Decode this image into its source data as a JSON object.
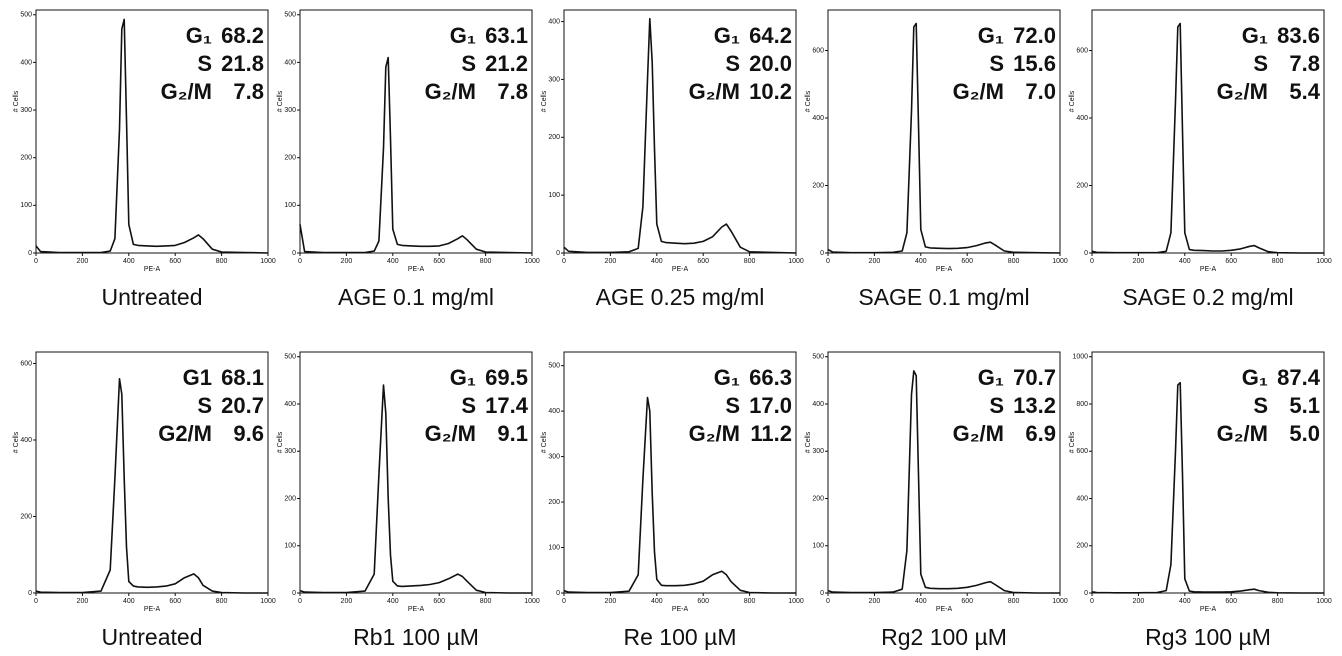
{
  "chart_data": [
    {
      "type": "line",
      "title": "Untreated",
      "x_label": "PE-A",
      "y_label": "# Cells",
      "color": "#111111",
      "x": [
        0,
        20,
        100,
        200,
        280,
        320,
        340,
        360,
        370,
        380,
        390,
        400,
        420,
        440,
        480,
        520,
        560,
        600,
        640,
        680,
        700,
        720,
        760,
        800,
        900,
        1000
      ],
      "values": [
        15,
        3,
        1,
        1,
        1,
        4,
        30,
        260,
        470,
        490,
        280,
        60,
        18,
        16,
        15,
        14,
        15,
        16,
        22,
        32,
        38,
        30,
        8,
        2,
        1,
        0
      ],
      "xlim": [
        0,
        1000
      ],
      "xticks": [
        0,
        200,
        400,
        600,
        800,
        1000
      ],
      "ylim": [
        0,
        510
      ],
      "yticks": [
        0,
        100,
        200,
        300,
        400,
        500
      ],
      "stats": {
        "labels": [
          "G₁",
          "S",
          "G₂/M"
        ],
        "values": [
          68.2,
          21.8,
          7.8
        ]
      }
    },
    {
      "type": "line",
      "title": "AGE 0.1 mg/ml",
      "x_label": "PE-A",
      "y_label": "# Cells",
      "color": "#111111",
      "x": [
        0,
        20,
        100,
        200,
        280,
        320,
        340,
        360,
        370,
        380,
        390,
        400,
        420,
        440,
        480,
        520,
        560,
        600,
        640,
        680,
        700,
        720,
        760,
        800,
        900,
        1000
      ],
      "values": [
        60,
        3,
        1,
        1,
        1,
        4,
        25,
        220,
        390,
        410,
        240,
        50,
        18,
        16,
        15,
        14,
        14,
        15,
        20,
        30,
        36,
        28,
        8,
        2,
        1,
        0
      ],
      "xlim": [
        0,
        1000
      ],
      "xticks": [
        0,
        200,
        400,
        600,
        800,
        1000
      ],
      "ylim": [
        0,
        510
      ],
      "yticks": [
        0,
        100,
        200,
        300,
        400,
        500
      ],
      "stats": {
        "labels": [
          "G₁",
          "S",
          "G₂/M"
        ],
        "values": [
          63.1,
          21.2,
          7.8
        ]
      }
    },
    {
      "type": "line",
      "title": "AGE 0.25 mg/ml",
      "x_label": "PE-A",
      "y_label": "# Cells",
      "color": "#111111",
      "x": [
        0,
        20,
        100,
        200,
        280,
        320,
        340,
        360,
        370,
        380,
        390,
        400,
        420,
        440,
        480,
        520,
        560,
        600,
        640,
        680,
        700,
        720,
        760,
        800,
        900,
        1000
      ],
      "values": [
        10,
        3,
        1,
        1,
        2,
        8,
        80,
        300,
        405,
        330,
        180,
        50,
        20,
        18,
        17,
        16,
        17,
        20,
        28,
        45,
        50,
        38,
        10,
        2,
        1,
        0
      ],
      "xlim": [
        0,
        1000
      ],
      "xticks": [
        0,
        200,
        400,
        600,
        800,
        1000
      ],
      "ylim": [
        0,
        420
      ],
      "yticks": [
        0,
        100,
        200,
        300,
        400
      ],
      "stats": {
        "labels": [
          "G₁",
          "S",
          "G₂/M"
        ],
        "values": [
          64.2,
          20,
          10.2
        ],
        "value_labels": [
          "64.2",
          "20.0",
          "10.2"
        ]
      }
    },
    {
      "type": "line",
      "title": "SAGE 0.1 mg/ml",
      "x_label": "PE-A",
      "y_label": "# Cells",
      "color": "#111111",
      "x": [
        0,
        20,
        100,
        200,
        280,
        320,
        340,
        360,
        370,
        380,
        390,
        400,
        420,
        440,
        480,
        520,
        560,
        600,
        640,
        680,
        700,
        720,
        760,
        800,
        900,
        1000
      ],
      "values": [
        10,
        3,
        1,
        1,
        2,
        6,
        60,
        420,
        670,
        680,
        380,
        70,
        18,
        15,
        14,
        13,
        14,
        16,
        22,
        30,
        32,
        24,
        6,
        2,
        1,
        0
      ],
      "xlim": [
        0,
        1000
      ],
      "xticks": [
        0,
        200,
        400,
        600,
        800,
        1000
      ],
      "ylim": [
        0,
        720
      ],
      "yticks": [
        0,
        200,
        400,
        600
      ],
      "stats": {
        "labels": [
          "G₁",
          "S",
          "G₂/M"
        ],
        "values": [
          72,
          15.6,
          7
        ],
        "value_labels": [
          "72.0",
          "15.6",
          "7.0"
        ]
      }
    },
    {
      "type": "line",
      "title": "SAGE 0.2 mg/ml",
      "x_label": "PE-A",
      "y_label": "# Cells",
      "color": "#111111",
      "x": [
        0,
        20,
        100,
        200,
        280,
        320,
        340,
        360,
        370,
        380,
        390,
        400,
        420,
        440,
        480,
        520,
        560,
        600,
        640,
        680,
        700,
        720,
        760,
        800,
        900,
        1000
      ],
      "values": [
        5,
        2,
        1,
        1,
        1,
        5,
        60,
        450,
        670,
        680,
        360,
        60,
        10,
        8,
        7,
        6,
        6,
        8,
        12,
        20,
        22,
        15,
        4,
        1,
        0,
        0
      ],
      "xlim": [
        0,
        1000
      ],
      "xticks": [
        0,
        200,
        400,
        600,
        800,
        1000
      ],
      "ylim": [
        0,
        720
      ],
      "yticks": [
        0,
        200,
        400,
        600
      ],
      "stats": {
        "labels": [
          "G₁",
          "S",
          "G₂/M"
        ],
        "values": [
          83.6,
          7.8,
          5.4
        ]
      }
    },
    {
      "type": "line",
      "title": "Untreated",
      "x_label": "PE-A",
      "y_label": "# Cells",
      "color": "#111111",
      "x": [
        0,
        20,
        100,
        200,
        280,
        320,
        340,
        360,
        370,
        380,
        390,
        400,
        420,
        440,
        480,
        520,
        560,
        600,
        640,
        680,
        700,
        720,
        760,
        800,
        900,
        1000
      ],
      "values": [
        5,
        2,
        1,
        1,
        5,
        60,
        300,
        560,
        520,
        300,
        120,
        30,
        18,
        16,
        15,
        16,
        18,
        24,
        40,
        50,
        40,
        20,
        5,
        1,
        0,
        0
      ],
      "xlim": [
        0,
        1000
      ],
      "xticks": [
        0,
        200,
        400,
        600,
        800,
        1000
      ],
      "ylim": [
        0,
        630
      ],
      "yticks": [
        0,
        200,
        400,
        600
      ],
      "stats": {
        "labels": [
          "G1",
          "S",
          "G2/M"
        ],
        "values": [
          68.1,
          20.7,
          9.6
        ]
      }
    },
    {
      "type": "line",
      "title": "Rb1 100 µM",
      "x_label": "PE-A",
      "y_label": "# Cells",
      "color": "#111111",
      "x": [
        0,
        20,
        100,
        200,
        280,
        320,
        340,
        360,
        370,
        380,
        390,
        400,
        420,
        440,
        480,
        520,
        560,
        600,
        640,
        680,
        700,
        720,
        760,
        800,
        900,
        1000
      ],
      "values": [
        5,
        2,
        1,
        1,
        4,
        40,
        250,
        440,
        380,
        200,
        80,
        25,
        15,
        14,
        15,
        16,
        18,
        22,
        30,
        40,
        35,
        25,
        6,
        1,
        0,
        0
      ],
      "xlim": [
        0,
        1000
      ],
      "xticks": [
        0,
        200,
        400,
        600,
        800,
        1000
      ],
      "ylim": [
        0,
        510
      ],
      "yticks": [
        0,
        100,
        200,
        300,
        400,
        500
      ],
      "stats": {
        "labels": [
          "G₁",
          "S",
          "G₂/M"
        ],
        "values": [
          69.5,
          17.4,
          9.1
        ]
      }
    },
    {
      "type": "line",
      "title": "Re 100 µM",
      "x_label": "PE-A",
      "y_label": "# Cells",
      "color": "#111111",
      "x": [
        0,
        20,
        100,
        200,
        280,
        320,
        340,
        360,
        370,
        380,
        390,
        400,
        420,
        440,
        480,
        520,
        560,
        600,
        640,
        680,
        700,
        720,
        760,
        800,
        900,
        1000
      ],
      "values": [
        5,
        2,
        1,
        1,
        4,
        40,
        250,
        430,
        400,
        220,
        90,
        30,
        17,
        16,
        16,
        17,
        20,
        26,
        40,
        48,
        40,
        25,
        6,
        1,
        0,
        0
      ],
      "xlim": [
        0,
        1000
      ],
      "xticks": [
        0,
        200,
        400,
        600,
        800,
        1000
      ],
      "ylim": [
        0,
        530
      ],
      "yticks": [
        0,
        100,
        200,
        300,
        400,
        500
      ],
      "stats": {
        "labels": [
          "G₁",
          "S",
          "G₂/M"
        ],
        "values": [
          66.3,
          17,
          11.2
        ],
        "value_labels": [
          "66.3",
          "17.0",
          "11.2"
        ]
      }
    },
    {
      "type": "line",
      "title": "Rg2 100 µM",
      "x_label": "PE-A",
      "y_label": "# Cells",
      "color": "#111111",
      "x": [
        0,
        20,
        100,
        200,
        280,
        320,
        340,
        360,
        370,
        380,
        390,
        400,
        420,
        440,
        480,
        520,
        560,
        600,
        640,
        680,
        700,
        720,
        760,
        800,
        900,
        1000
      ],
      "values": [
        5,
        2,
        1,
        1,
        2,
        8,
        90,
        420,
        470,
        460,
        250,
        40,
        12,
        10,
        9,
        9,
        10,
        12,
        16,
        22,
        24,
        18,
        5,
        1,
        0,
        0
      ],
      "xlim": [
        0,
        1000
      ],
      "xticks": [
        0,
        200,
        400,
        600,
        800,
        1000
      ],
      "ylim": [
        0,
        510
      ],
      "yticks": [
        0,
        100,
        200,
        300,
        400,
        500
      ],
      "stats": {
        "labels": [
          "G₁",
          "S",
          "G₂/M"
        ],
        "values": [
          70.7,
          13.2,
          6.9
        ]
      }
    },
    {
      "type": "line",
      "title": "Rg3 100 µM",
      "x_label": "PE-A",
      "y_label": "# Cells",
      "color": "#111111",
      "x": [
        0,
        20,
        100,
        200,
        280,
        320,
        340,
        360,
        370,
        380,
        390,
        400,
        420,
        440,
        480,
        520,
        560,
        600,
        640,
        680,
        700,
        720,
        760,
        800,
        900,
        1000
      ],
      "values": [
        5,
        2,
        1,
        1,
        2,
        10,
        120,
        600,
        880,
        890,
        500,
        60,
        8,
        5,
        4,
        4,
        4,
        5,
        8,
        14,
        16,
        10,
        3,
        1,
        0,
        0
      ],
      "xlim": [
        0,
        1000
      ],
      "xticks": [
        0,
        200,
        400,
        600,
        800,
        1000
      ],
      "ylim": [
        0,
        1020
      ],
      "yticks": [
        0,
        200,
        400,
        600,
        800,
        1000
      ],
      "stats": {
        "labels": [
          "G₁",
          "S",
          "G₂/M"
        ],
        "values": [
          87.4,
          5.1,
          5
        ],
        "value_labels": [
          "87.4",
          "5.1",
          "5.0"
        ]
      }
    }
  ]
}
